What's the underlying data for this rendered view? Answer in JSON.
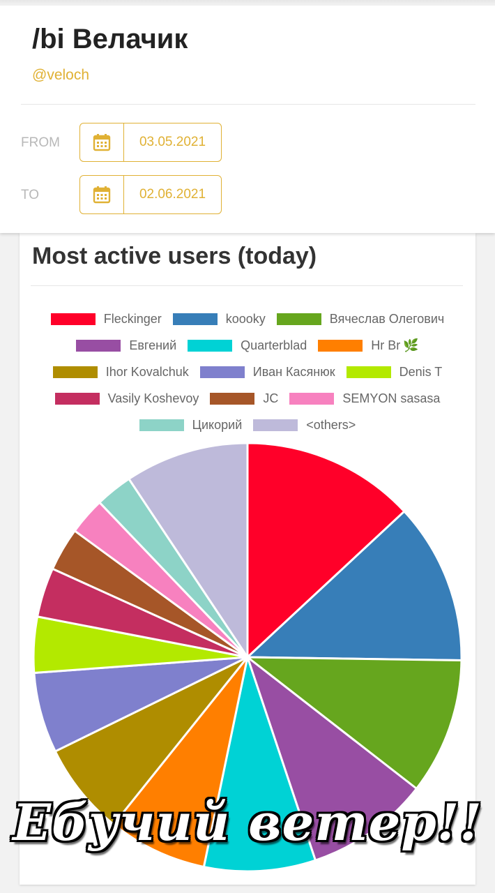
{
  "header": {
    "title": "/bi Велачик",
    "handle": "@veloch",
    "from_label": "FROM",
    "from_date": "03.05.2021",
    "to_label": "TO",
    "to_date": "02.06.2021",
    "accent_color": "#e0b134"
  },
  "card": {
    "title": "Most active users (today)"
  },
  "overlay_caption": "Ебучий ветер!!",
  "chart_data": {
    "type": "pie",
    "title": "Most active users (today)",
    "legend_position": "top",
    "slices": [
      {
        "label": "Fleckinger",
        "value": 14.0,
        "color": "#ff0029"
      },
      {
        "label": "koooky",
        "value": 13.0,
        "color": "#377eb8"
      },
      {
        "label": "Вячеслав Олегович",
        "value": 11.0,
        "color": "#66a61e"
      },
      {
        "label": "Евгений",
        "value": 10.0,
        "color": "#984ea3"
      },
      {
        "label": "Quarterblad",
        "value": 9.0,
        "color": "#00d2d5"
      },
      {
        "label": "Hr Br",
        "value": 8.0,
        "color": "#ff7f00"
      },
      {
        "label": "Ihor Kovalchuk",
        "value": 7.5,
        "color": "#af8d00"
      },
      {
        "label": "Иван Касянюк",
        "value": 6.5,
        "color": "#7f80cd"
      },
      {
        "label": "Denis T",
        "value": 4.5,
        "color": "#b3e900"
      },
      {
        "label": "Vasily Koshevoy",
        "value": 4.0,
        "color": "#c42e60"
      },
      {
        "label": "JC",
        "value": 3.5,
        "color": "#a65628"
      },
      {
        "label": "SEMYON sasasa",
        "value": 3.0,
        "color": "#f781bf"
      },
      {
        "label": "Цикорий",
        "value": 3.0,
        "color": "#8dd3c7"
      },
      {
        "label": "<others>",
        "value": 10.0,
        "color": "#bebada"
      }
    ]
  }
}
